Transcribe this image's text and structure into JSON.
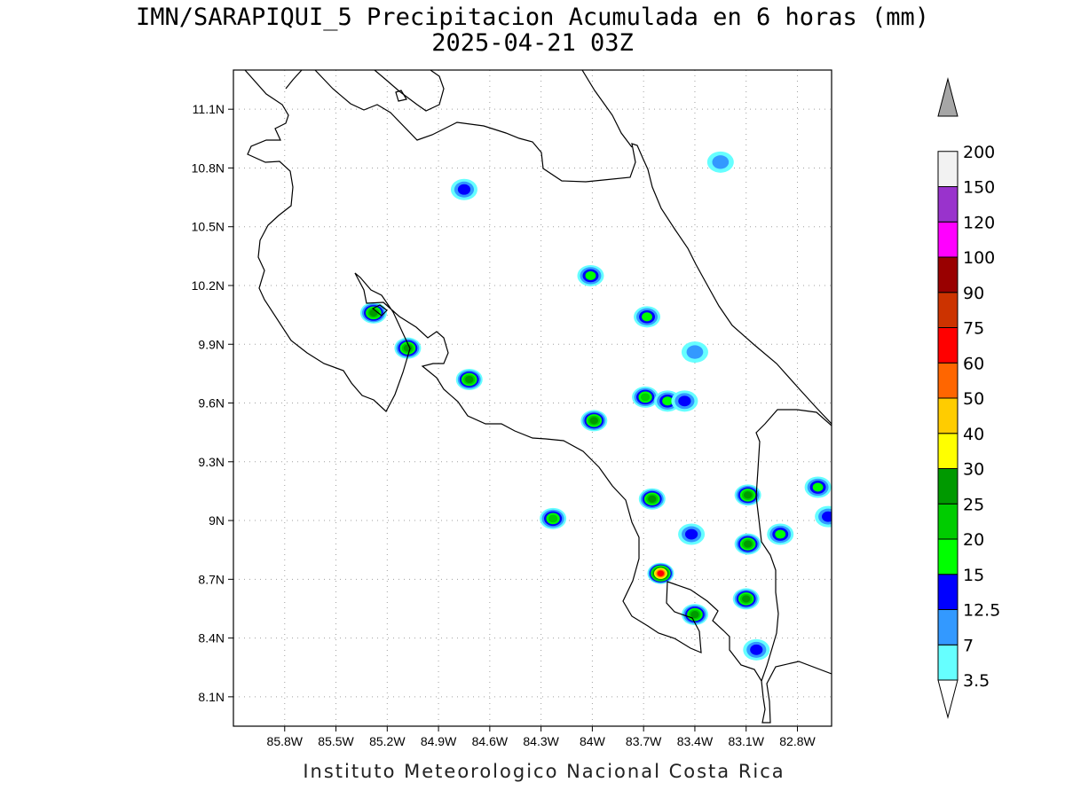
{
  "title": {
    "line1": "IMN/SARAPIQUI_5 Precipitacion Acumulada en 6 horas (mm)",
    "line2": "2025-04-21 03Z"
  },
  "footer": "Instituto Meteorologico Nacional Costa Rica",
  "map": {
    "lon_range": [
      -86.1,
      -82.6
    ],
    "lat_range": [
      7.95,
      11.3
    ],
    "lon_ticks": [
      "85.8W",
      "85.5W",
      "85.2W",
      "84.9W",
      "84.6W",
      "84.3W",
      "84W",
      "83.7W",
      "83.4W",
      "83.1W",
      "82.8W"
    ],
    "lat_ticks": [
      "8.1N",
      "8.4N",
      "8.7N",
      "9N",
      "9.3N",
      "9.6N",
      "9.9N",
      "10.2N",
      "10.5N",
      "10.8N",
      "11.1N"
    ],
    "grid": true
  },
  "colorbar": {
    "labels": [
      "3.5",
      "7",
      "12.5",
      "15",
      "20",
      "25",
      "30",
      "40",
      "50",
      "60",
      "75",
      "90",
      "100",
      "120",
      "150",
      "200"
    ],
    "colors": [
      "#66ffff",
      "#3399ff",
      "#0000ff",
      "#00ff00",
      "#00cc00",
      "#009900",
      "#ffff00",
      "#ffcc00",
      "#ff6600",
      "#ff0000",
      "#cc3300",
      "#990000",
      "#ff00ff",
      "#9933cc",
      "#f2f2f2",
      "#a6a6a6"
    ]
  },
  "precip_cells": [
    {
      "lon": -85.28,
      "lat": 10.06,
      "level": 5
    },
    {
      "lon": -85.08,
      "lat": 9.88,
      "level": 5
    },
    {
      "lon": -84.72,
      "lat": 9.72,
      "level": 5
    },
    {
      "lon": -84.75,
      "lat": 10.69,
      "level": 2
    },
    {
      "lon": -84.01,
      "lat": 10.25,
      "level": 3
    },
    {
      "lon": -83.68,
      "lat": 10.04,
      "level": 3
    },
    {
      "lon": -83.99,
      "lat": 9.51,
      "level": 5
    },
    {
      "lon": -83.69,
      "lat": 9.63,
      "level": 4
    },
    {
      "lon": -83.56,
      "lat": 9.61,
      "level": 3
    },
    {
      "lon": -83.46,
      "lat": 9.61,
      "level": 2
    },
    {
      "lon": -83.4,
      "lat": 9.86,
      "level": 1
    },
    {
      "lon": -83.65,
      "lat": 9.11,
      "level": 5
    },
    {
      "lon": -84.23,
      "lat": 9.01,
      "level": 4
    },
    {
      "lon": -83.6,
      "lat": 8.73,
      "level": 9
    },
    {
      "lon": -83.09,
      "lat": 9.13,
      "level": 5
    },
    {
      "lon": -83.09,
      "lat": 8.88,
      "level": 5
    },
    {
      "lon": -83.1,
      "lat": 8.6,
      "level": 5
    },
    {
      "lon": -83.4,
      "lat": 8.52,
      "level": 5
    },
    {
      "lon": -83.42,
      "lat": 8.93,
      "level": 2
    },
    {
      "lon": -82.9,
      "lat": 8.93,
      "level": 3
    },
    {
      "lon": -82.68,
      "lat": 9.17,
      "level": 3
    },
    {
      "lon": -82.62,
      "lat": 9.02,
      "level": 2
    },
    {
      "lon": -83.25,
      "lat": 10.83,
      "level": 1
    },
    {
      "lon": -83.04,
      "lat": 8.34,
      "level": 2
    }
  ]
}
